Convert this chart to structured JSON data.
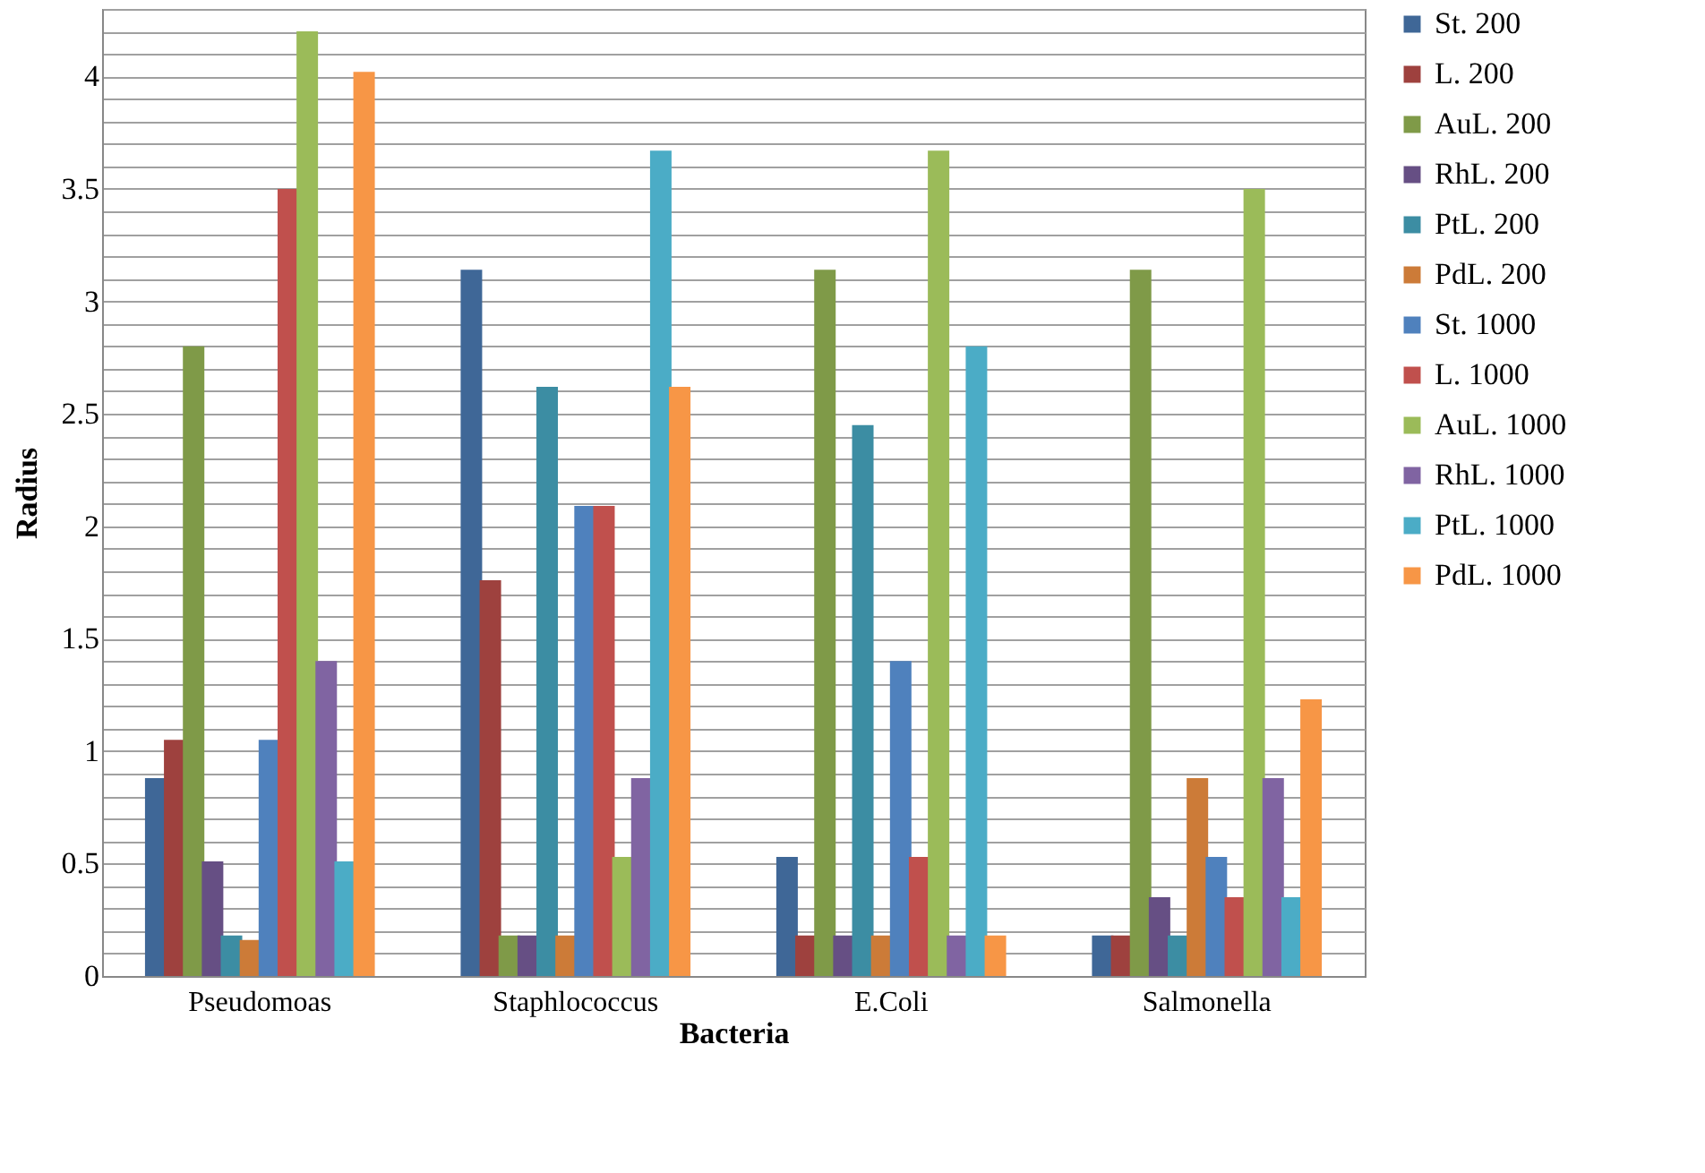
{
  "chart_data": {
    "type": "bar",
    "xlabel": "Bacteria",
    "ylabel": "Radius",
    "categories": [
      "Pseudomoas",
      "Staphlococcus",
      "E.Coli",
      "Salmonella"
    ],
    "series": [
      {
        "name": "St. 200",
        "color": "#3f6797",
        "values": [
          0.88,
          3.14,
          0.53,
          0.18
        ]
      },
      {
        "name": "L. 200",
        "color": "#9e413e",
        "values": [
          1.05,
          1.76,
          0.18,
          0.18
        ]
      },
      {
        "name": "AuL. 200",
        "color": "#7f9a48",
        "values": [
          2.8,
          0.18,
          3.14,
          3.14
        ]
      },
      {
        "name": "RhL. 200",
        "color": "#664f84",
        "values": [
          0.51,
          0.18,
          0.18,
          0.35
        ]
      },
      {
        "name": "PtL. 200",
        "color": "#3c8da3",
        "values": [
          0.18,
          2.62,
          2.45,
          0.18
        ]
      },
      {
        "name": "PdL. 200",
        "color": "#cc7b38",
        "values": [
          0.16,
          0.18,
          0.18,
          0.88
        ]
      },
      {
        "name": "St. 1000",
        "color": "#4f81bd",
        "values": [
          1.05,
          2.09,
          1.4,
          0.53
        ]
      },
      {
        "name": "L. 1000",
        "color": "#c0504d",
        "values": [
          3.5,
          2.09,
          0.53,
          0.35
        ]
      },
      {
        "name": "AuL. 1000",
        "color": "#9bbb59",
        "values": [
          4.2,
          0.53,
          3.67,
          3.5
        ]
      },
      {
        "name": "RhL. 1000",
        "color": "#8064a2",
        "values": [
          1.4,
          0.88,
          0.18,
          0.88
        ]
      },
      {
        "name": "PtL. 1000",
        "color": "#4bacc6",
        "values": [
          0.51,
          3.67,
          2.8,
          0.35
        ]
      },
      {
        "name": "PdL. 1000",
        "color": "#f79646",
        "values": [
          4.02,
          2.62,
          0.18,
          1.23
        ]
      }
    ],
    "ylim": [
      0,
      4.3
    ],
    "yticks": [
      0,
      {
        "value": 0.1,
        "label": null
      },
      {
        "value": 0.2,
        "label": null
      },
      {
        "value": 0.3,
        "label": null
      },
      {
        "value": 0.4,
        "label": null
      },
      0.5,
      {
        "value": 0.6,
        "label": null
      },
      {
        "value": 0.7,
        "label": null
      },
      {
        "value": 0.8,
        "label": null
      },
      {
        "value": 0.9,
        "label": null
      },
      1,
      {
        "value": 1.1,
        "label": null
      },
      {
        "value": 1.2,
        "label": null
      },
      {
        "value": 1.3,
        "label": null
      },
      {
        "value": 1.4,
        "label": null
      },
      1.5,
      {
        "value": 1.6,
        "label": null
      },
      {
        "value": 1.7,
        "label": null
      },
      {
        "value": 1.8,
        "label": null
      },
      {
        "value": 1.9,
        "label": null
      },
      2,
      {
        "value": 2.1,
        "label": null
      },
      {
        "value": 2.2,
        "label": null
      },
      {
        "value": 2.3,
        "label": null
      },
      {
        "value": 2.4,
        "label": null
      },
      2.5,
      {
        "value": 2.6,
        "label": null
      },
      {
        "value": 2.7,
        "label": null
      },
      {
        "value": 2.8,
        "label": null
      },
      {
        "value": 2.9,
        "label": null
      },
      3,
      {
        "value": 3.1,
        "label": null
      },
      {
        "value": 3.2,
        "label": null
      },
      {
        "value": 3.3,
        "label": null
      },
      {
        "value": 3.4,
        "label": null
      },
      3.5,
      {
        "value": 3.6,
        "label": null
      },
      {
        "value": 3.7,
        "label": null
      },
      {
        "value": 3.8,
        "label": null
      },
      {
        "value": 3.9,
        "label": null
      },
      4,
      {
        "value": 4.1,
        "label": null
      },
      {
        "value": 4.2,
        "label": null
      },
      {
        "value": 4.3,
        "label": null
      }
    ],
    "grid": "y",
    "legend": "right"
  }
}
